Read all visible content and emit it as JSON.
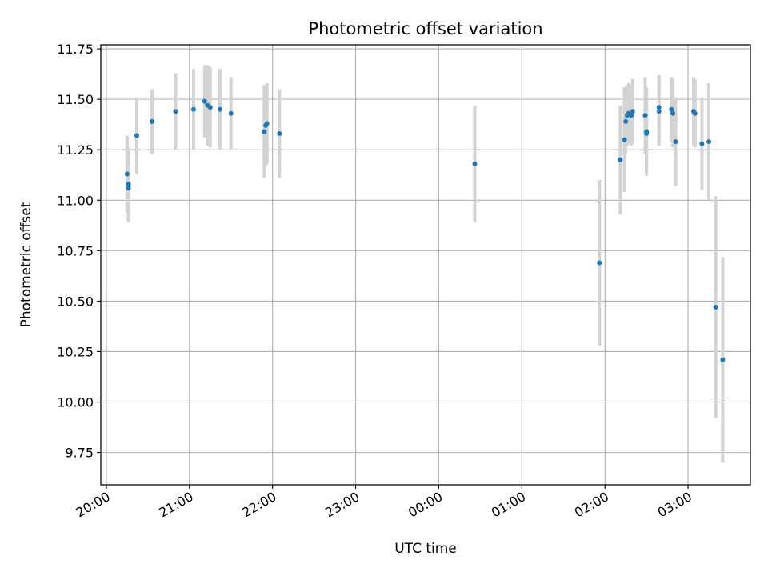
{
  "chart_data": {
    "type": "scatter",
    "title": "Photometric offset variation",
    "xlabel": "UTC time",
    "ylabel": "Photometric offset",
    "x_tick_labels": [
      "20:00",
      "21:00",
      "22:00",
      "23:00",
      "00:00",
      "01:00",
      "02:00",
      "03:00"
    ],
    "y_tick_labels": [
      "9.75",
      "10.00",
      "10.25",
      "10.50",
      "10.75",
      "11.00",
      "11.25",
      "11.50",
      "11.75"
    ],
    "y_ticks": [
      9.75,
      10.0,
      10.25,
      10.5,
      10.75,
      11.0,
      11.25,
      11.5,
      11.75
    ],
    "ylim": [
      9.59,
      11.77
    ],
    "xlim": [
      "19:56",
      "03:45"
    ],
    "grid": true,
    "marker_color": "#1f77b4",
    "errorbar_color": "#d3d3d3",
    "points": [
      {
        "t": "20:15",
        "y": 11.13,
        "err": 0.19
      },
      {
        "t": "20:16",
        "y": 11.08,
        "err": 0.18
      },
      {
        "t": "20:16",
        "y": 11.06,
        "err": 0.17
      },
      {
        "t": "20:22",
        "y": 11.32,
        "err": 0.19
      },
      {
        "t": "20:33",
        "y": 11.39,
        "err": 0.16
      },
      {
        "t": "20:50",
        "y": 11.44,
        "err": 0.19
      },
      {
        "t": "21:03",
        "y": 11.45,
        "err": 0.2
      },
      {
        "t": "21:11",
        "y": 11.49,
        "err": 0.18
      },
      {
        "t": "21:13",
        "y": 11.47,
        "err": 0.2
      },
      {
        "t": "21:15",
        "y": 11.46,
        "err": 0.2
      },
      {
        "t": "21:22",
        "y": 11.45,
        "err": 0.2
      },
      {
        "t": "21:30",
        "y": 11.43,
        "err": 0.18
      },
      {
        "t": "21:54",
        "y": 11.34,
        "err": 0.23
      },
      {
        "t": "21:55",
        "y": 11.37,
        "err": 0.2
      },
      {
        "t": "21:56",
        "y": 11.38,
        "err": 0.2
      },
      {
        "t": "22:05",
        "y": 11.33,
        "err": 0.22
      },
      {
        "t": "00:26",
        "y": 11.18,
        "err": 0.29
      },
      {
        "t": "01:56",
        "y": 10.69,
        "err": 0.41
      },
      {
        "t": "02:11",
        "y": 11.2,
        "err": 0.27
      },
      {
        "t": "02:14",
        "y": 11.3,
        "err": 0.26
      },
      {
        "t": "02:15",
        "y": 11.39,
        "err": 0.16
      },
      {
        "t": "02:16",
        "y": 11.42,
        "err": 0.15
      },
      {
        "t": "02:17",
        "y": 11.43,
        "err": 0.15
      },
      {
        "t": "02:19",
        "y": 11.42,
        "err": 0.15
      },
      {
        "t": "02:20",
        "y": 11.44,
        "err": 0.16
      },
      {
        "t": "02:29",
        "y": 11.42,
        "err": 0.19
      },
      {
        "t": "02:30",
        "y": 11.33,
        "err": 0.2
      },
      {
        "t": "02:30",
        "y": 11.34,
        "err": 0.22
      },
      {
        "t": "02:39",
        "y": 11.44,
        "err": 0.17
      },
      {
        "t": "02:39",
        "y": 11.46,
        "err": 0.16
      },
      {
        "t": "02:48",
        "y": 11.45,
        "err": 0.16
      },
      {
        "t": "02:49",
        "y": 11.43,
        "err": 0.17
      },
      {
        "t": "02:51",
        "y": 11.29,
        "err": 0.22
      },
      {
        "t": "03:04",
        "y": 11.44,
        "err": 0.17
      },
      {
        "t": "03:05",
        "y": 11.43,
        "err": 0.17
      },
      {
        "t": "03:10",
        "y": 11.28,
        "err": 0.23
      },
      {
        "t": "03:15",
        "y": 11.29,
        "err": 0.29
      },
      {
        "t": "03:20",
        "y": 10.47,
        "err": 0.55
      },
      {
        "t": "03:25",
        "y": 10.21,
        "err": 0.51
      }
    ]
  }
}
